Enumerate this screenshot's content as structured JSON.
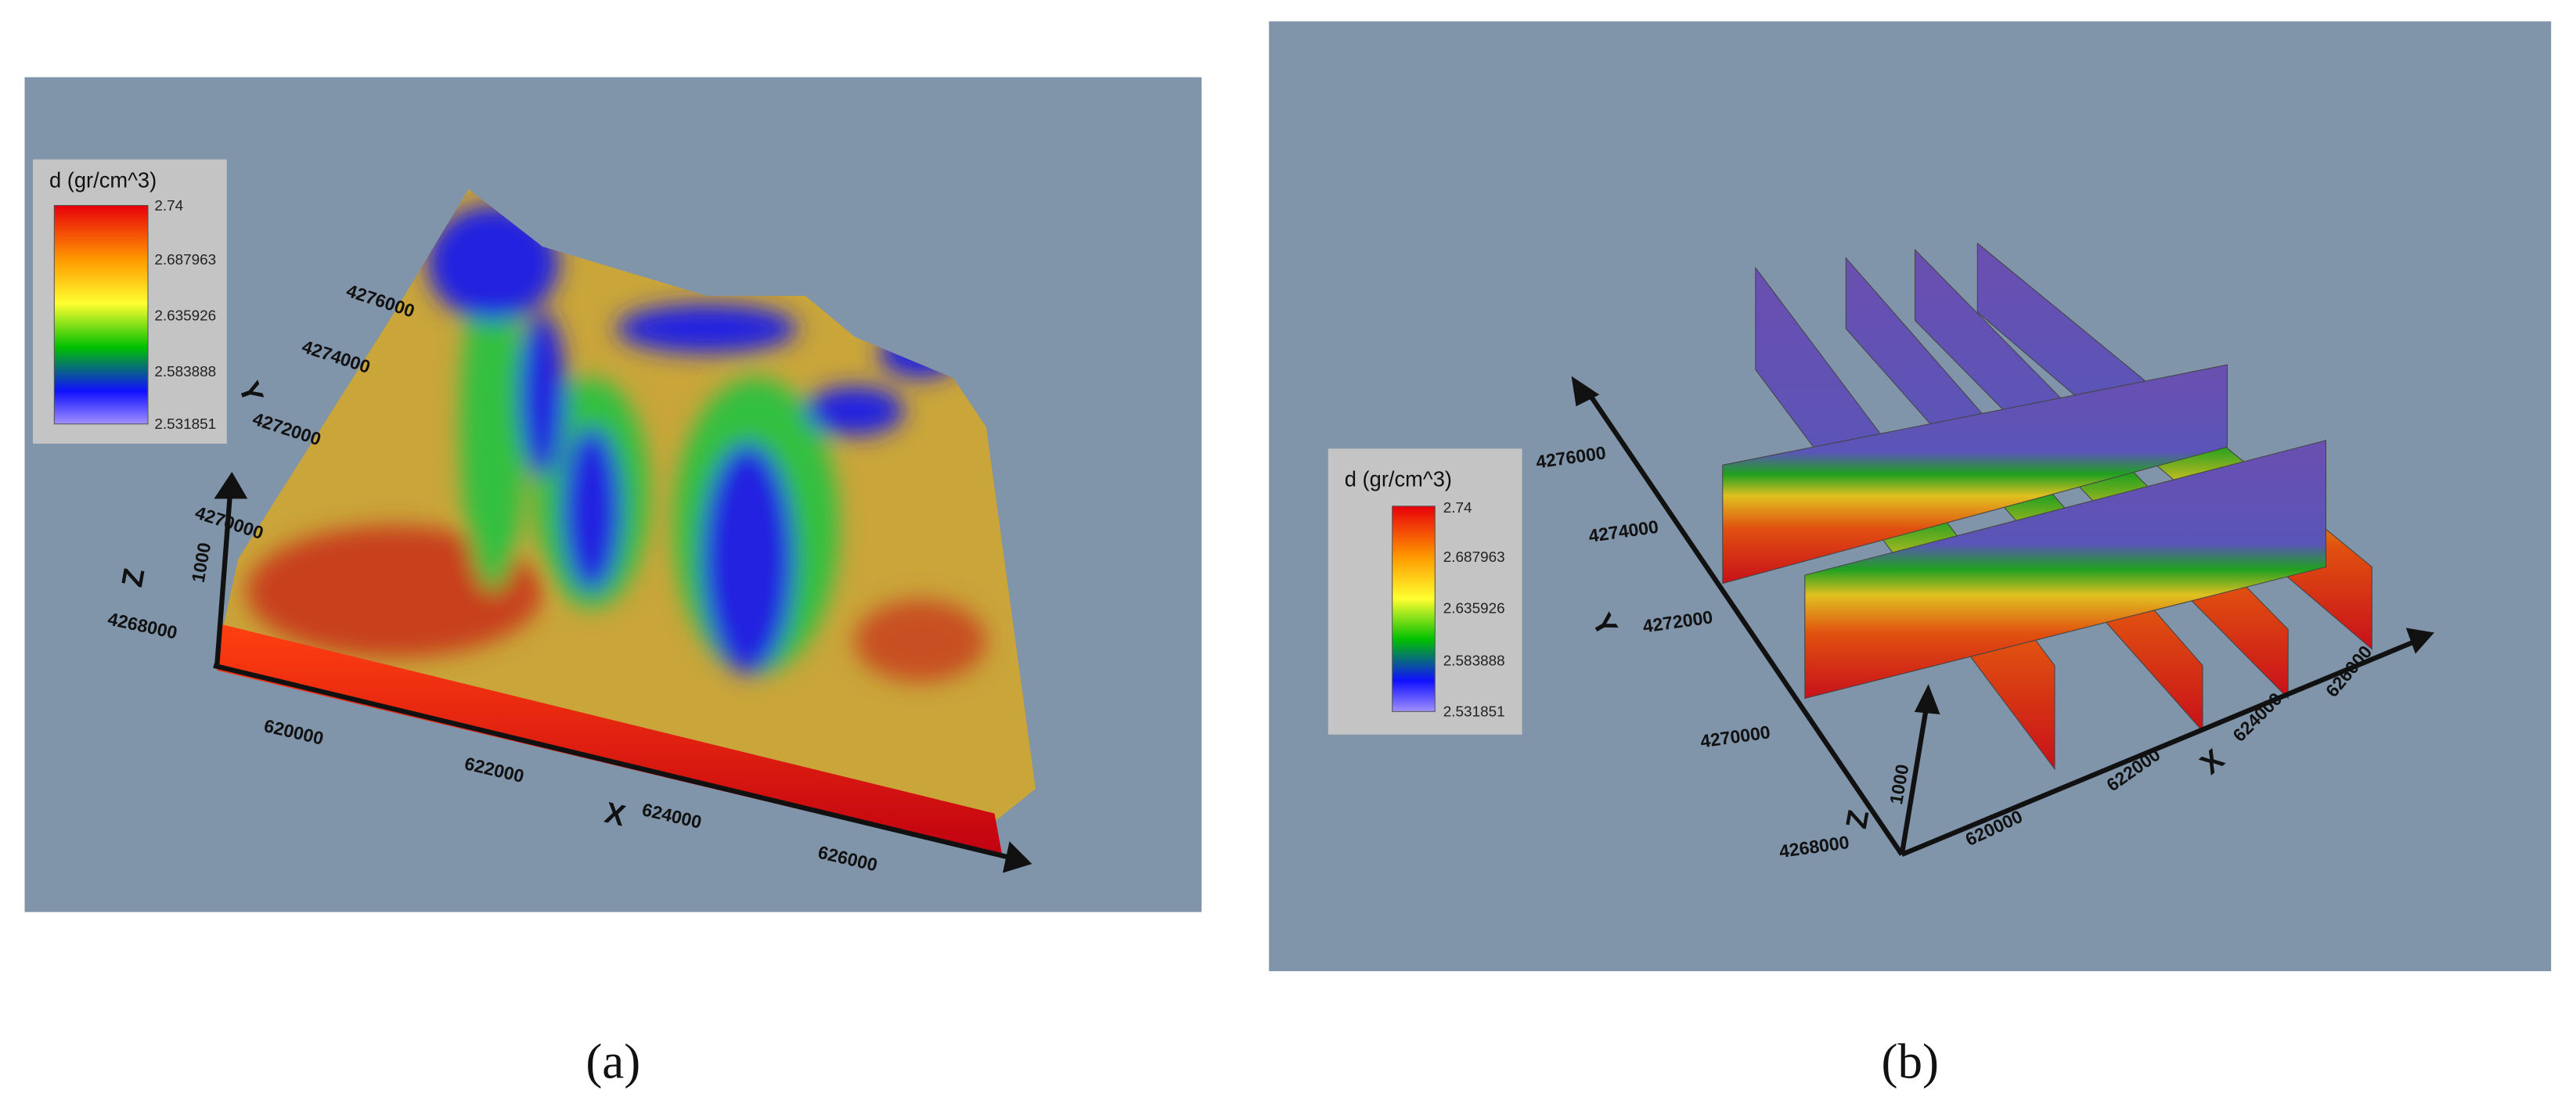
{
  "panels": [
    {
      "caption": "(a)",
      "legend": {
        "title": "d (gr/cm^3)",
        "ticks": [
          "2.74",
          "2.687963",
          "2.635926",
          "2.583888",
          "2.531851"
        ]
      },
      "x_axis": {
        "label": "X",
        "ticks": [
          "620000",
          "622000",
          "624000",
          "626000"
        ]
      },
      "y_axis": {
        "label": "Y",
        "ticks": [
          "4276000",
          "4274000",
          "4272000",
          "4270000",
          "4268000"
        ]
      },
      "z_axis": {
        "label": "Z",
        "ticks": [
          "1000"
        ]
      }
    },
    {
      "caption": "(b)",
      "legend": {
        "title": "d (gr/cm^3)",
        "ticks": [
          "2.74",
          "2.687963",
          "2.635926",
          "2.583888",
          "2.531851"
        ]
      },
      "x_axis": {
        "label": "X",
        "ticks": [
          "620000",
          "622000",
          "624000",
          "626000"
        ]
      },
      "y_axis": {
        "label": "Y",
        "ticks": [
          "4276000",
          "4274000",
          "4272000",
          "4270000",
          "4268000"
        ]
      },
      "z_axis": {
        "label": "Z",
        "ticks": [
          "1000"
        ]
      }
    }
  ]
}
